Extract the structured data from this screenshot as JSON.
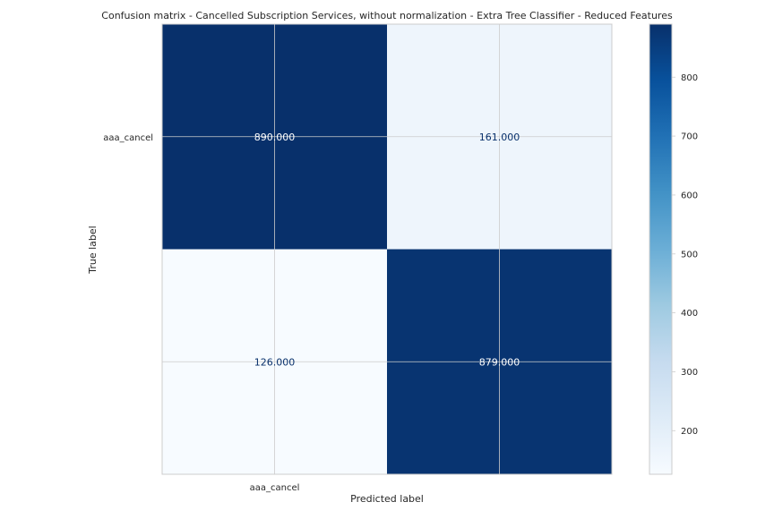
{
  "chart_data": {
    "type": "heatmap",
    "title": "Confusion matrix - Cancelled Subscription Services, without normalization - Extra Tree Classifier - Reduced Features",
    "xlabel": "Predicted label",
    "ylabel": "True label",
    "x_tick_labels": [
      "aaa_cancel"
    ],
    "y_tick_labels": [
      "aaa_cancel"
    ],
    "matrix": [
      [
        890,
        161
      ],
      [
        126,
        879
      ]
    ],
    "cell_labels": [
      [
        "890.000",
        "161.000"
      ],
      [
        "126.000",
        "879.000"
      ]
    ],
    "colormap": "Blues",
    "colorbar": {
      "min": 126,
      "max": 890,
      "ticks": [
        200,
        300,
        400,
        500,
        600,
        700,
        800
      ],
      "tick_labels": [
        "200",
        "300",
        "400",
        "500",
        "600",
        "700",
        "800"
      ]
    },
    "grid": true,
    "colors": {
      "dark_text": "#08306b",
      "light_text": "#ffffff",
      "grid": "#cccccc",
      "frame": "#cccccc"
    }
  }
}
